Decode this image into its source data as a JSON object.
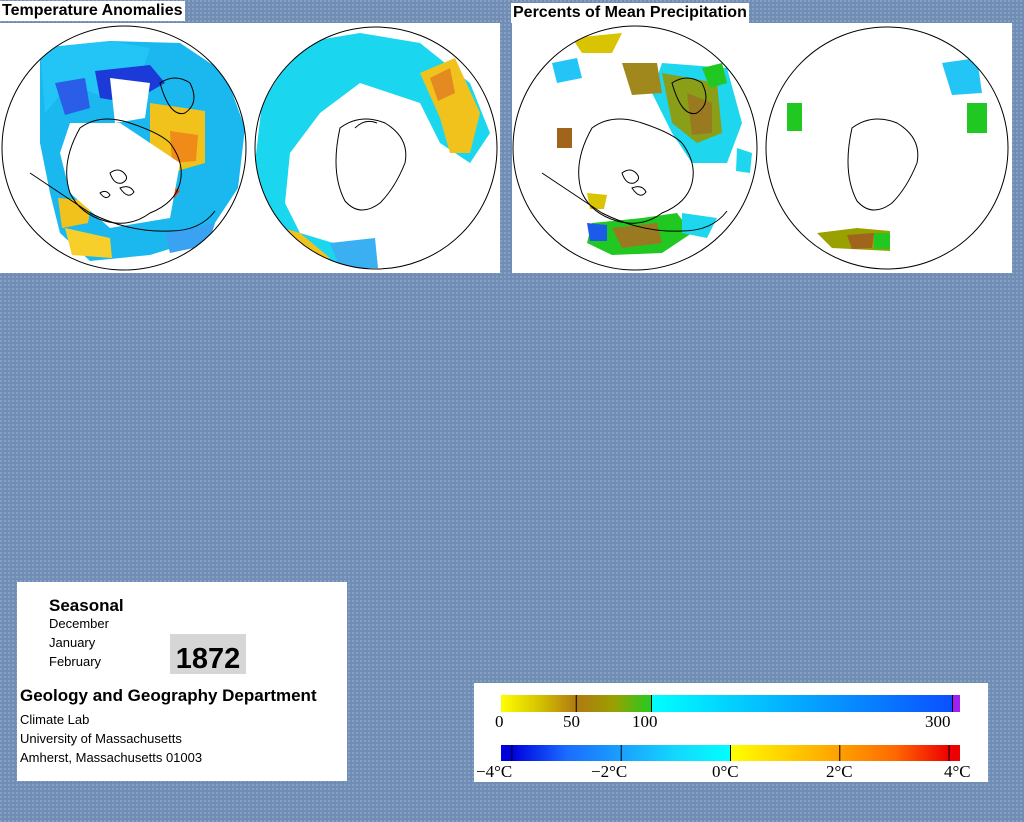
{
  "panels": {
    "temperature": {
      "title": "Temperature Anomalies"
    },
    "precipitation": {
      "title": "Percents of Mean Precipitation"
    }
  },
  "info": {
    "season_label": "Seasonal",
    "months": [
      "December",
      "January",
      "February"
    ],
    "year": "1872",
    "department": "Geology and Geography Department",
    "address_lines": [
      "Climate Lab",
      "University of Massachusetts",
      "Amherst, Massachusetts 01003"
    ]
  },
  "legend": {
    "precipitation": {
      "tick_labels": [
        "0",
        "50",
        "100",
        "300"
      ],
      "stops": [
        {
          "value": 0,
          "color": "#ffff00"
        },
        {
          "value": 25,
          "color": "#d6c400"
        },
        {
          "value": 50,
          "color": "#b07a10"
        },
        {
          "value": 75,
          "color": "#9aa000"
        },
        {
          "value": 100,
          "color": "#22cc22"
        },
        {
          "value": 100.01,
          "color": "#00ffff"
        },
        {
          "value": 300,
          "color": "#0a50ff"
        },
        {
          "value": 300.01,
          "color": "#a020f0"
        }
      ]
    },
    "temperature": {
      "tick_labels": [
        "−4°C",
        "−2°C",
        "0°C",
        "2°C",
        "4°C"
      ],
      "stops": [
        {
          "value": -4,
          "color": "#0000dd"
        },
        {
          "value": -3,
          "color": "#1a6cff"
        },
        {
          "value": -2,
          "color": "#1aa0ff"
        },
        {
          "value": -1,
          "color": "#14d8ff"
        },
        {
          "value": 0,
          "color": "#00ffff"
        },
        {
          "value": 0.01,
          "color": "#ffff00"
        },
        {
          "value": 1,
          "color": "#ffd000"
        },
        {
          "value": 2,
          "color": "#ffa000"
        },
        {
          "value": 3,
          "color": "#ff6a00"
        },
        {
          "value": 4,
          "color": "#ee0000"
        }
      ]
    }
  }
}
